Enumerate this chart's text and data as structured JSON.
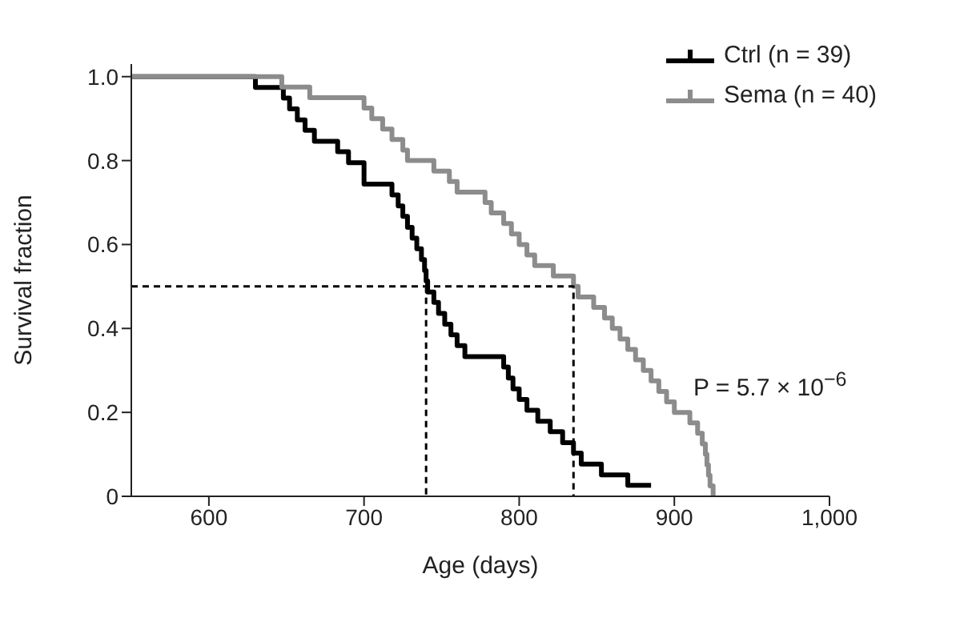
{
  "chart_data": {
    "type": "step",
    "xlabel": "Age (days)",
    "ylabel": "Survival fraction",
    "xlim": [
      550,
      1000
    ],
    "ylim": [
      0,
      1.03
    ],
    "xticks": [
      600,
      700,
      800,
      900,
      {
        "value": 1000,
        "label": "1,000"
      }
    ],
    "yticks": [
      0,
      0.2,
      0.4,
      0.6,
      0.8,
      {
        "value": 1,
        "label": "1.0"
      }
    ],
    "legend": "top right",
    "line_style": "solid",
    "annotations": [
      "P = 5.7 × 10$^{−6}$"
    ],
    "series": [
      {
        "name": "Ctrl (n = 39)",
        "color": "#000000",
        "x": [
          550,
          630,
          648,
          652,
          657,
          662,
          668,
          683,
          690,
          700,
          718,
          722,
          725,
          728,
          731,
          734,
          737,
          739,
          740,
          741,
          745,
          748,
          752,
          756,
          760,
          765,
          790,
          793,
          796,
          800,
          805,
          812,
          820,
          828,
          835,
          840,
          853,
          870,
          885
        ],
        "values": [
          1,
          0.974,
          0.949,
          0.923,
          0.897,
          0.872,
          0.846,
          0.821,
          0.795,
          0.744,
          0.718,
          0.692,
          0.667,
          0.641,
          0.615,
          0.59,
          0.564,
          0.538,
          0.513,
          0.487,
          0.462,
          0.436,
          0.41,
          0.385,
          0.359,
          0.333,
          0.308,
          0.282,
          0.256,
          0.231,
          0.205,
          0.179,
          0.154,
          0.128,
          0.103,
          0.077,
          0.051,
          0.026,
          0.026
        ]
      },
      {
        "name": "Sema (n = 40)",
        "color": "#8c8c8c",
        "x": [
          550,
          647,
          665,
          700,
          705,
          712,
          718,
          725,
          728,
          745,
          755,
          760,
          778,
          782,
          790,
          795,
          800,
          805,
          810,
          822,
          835,
          838,
          848,
          855,
          860,
          865,
          870,
          875,
          880,
          885,
          890,
          895,
          900,
          910,
          915,
          918,
          920,
          921,
          922,
          923,
          925
        ],
        "values": [
          1,
          0.975,
          0.95,
          0.925,
          0.9,
          0.875,
          0.85,
          0.825,
          0.8,
          0.775,
          0.75,
          0.725,
          0.7,
          0.675,
          0.65,
          0.625,
          0.6,
          0.575,
          0.55,
          0.525,
          0.5,
          0.475,
          0.45,
          0.425,
          0.4,
          0.375,
          0.35,
          0.325,
          0.3,
          0.275,
          0.25,
          0.225,
          0.2,
          0.175,
          0.15,
          0.125,
          0.1,
          0.075,
          0.05,
          0.025,
          0
        ]
      },
      {
        "type": "line",
        "color": "#000000",
        "line_style": "dashed",
        "x": [
          550,
          835,
          835
        ],
        "values": [
          0.5,
          0.5,
          0
        ]
      },
      {
        "type": "line",
        "color": "#000000",
        "line_style": "dashed",
        "x": [
          740,
          740
        ],
        "values": [
          0.5,
          0
        ]
      }
    ]
  }
}
